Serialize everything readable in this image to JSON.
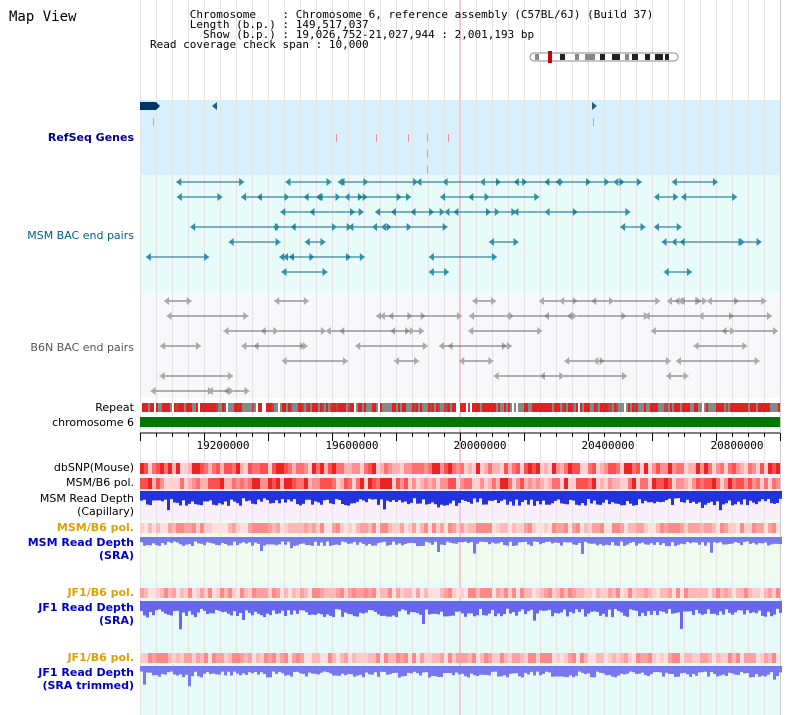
{
  "title": "Map View",
  "info": {
    "chromosome_label": "Chromosome",
    "chromosome_value": "Chromosome 6, reference assembly (C57BL/6J) (Build 37)",
    "length_label": "Length (b.p.)",
    "length_value": "149,517,037",
    "show_label": "Show (b.p.)",
    "show_value": "19,026,752-21,027,944 : 2,001,193 bp",
    "span_label": "Read coverage check span",
    "span_value": "10,000"
  },
  "tracks": {
    "refseq": "RefSeq Genes",
    "msm_bac": "MSM BAC end pairs",
    "b6n_bac": "B6N BAC end pairs",
    "repeat": "Repeat",
    "chromosome": "chromosome 6",
    "dbsnp": "dbSNP(Mouse)",
    "msm_b6_pol_1": "MSM/B6 pol.",
    "msm_read_depth_cap_1": "MSM Read Depth",
    "msm_read_depth_cap_2": "(Capillary)",
    "msm_b6_pol_2": "MSM/B6 pol.",
    "msm_read_depth_sra_1": "MSM Read Depth",
    "msm_read_depth_sra_2": "(SRA)",
    "jf1_b6_pol_1": "JF1/B6 pol.",
    "jf1_read_depth_sra_1": "JF1 Read Depth",
    "jf1_read_depth_sra_2": "(SRA)",
    "jf1_b6_pol_2": "JF1/B6 pol.",
    "jf1_read_depth_trim_1": "JF1 Read Depth",
    "jf1_read_depth_trim_2": "(SRA trimmed)"
  },
  "axis": {
    "ticks": [
      "19200000",
      "19600000",
      "20000000",
      "20400000",
      "20800000"
    ]
  },
  "colors": {
    "refseq_label": "#00008b",
    "msm_label": "#006080",
    "b6n_label": "#555555",
    "orange_label": "#e0a000",
    "blue_label": "#0000cc",
    "chromosome_bar": "#007700"
  }
}
